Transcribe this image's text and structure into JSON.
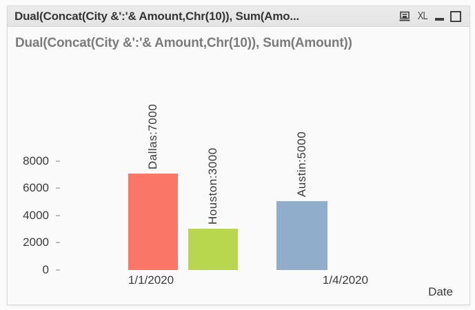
{
  "window": {
    "title": "Dual(Concat(City &':'& Amount,Chr(10)), Sum(Amo...",
    "toolbar": {
      "print_icon": "printer-icon",
      "excel_label": "XL",
      "minimize_icon": "minimize-icon",
      "maximize_icon": "maximize-icon"
    }
  },
  "chart_data": {
    "type": "bar",
    "title": "Dual(Concat(City &':'& Amount,Chr(10)), Sum(Amount))",
    "xlabel": "Date",
    "ylabel": "",
    "ylim": [
      0,
      8000
    ],
    "y_ticks": [
      0,
      2000,
      4000,
      6000,
      8000
    ],
    "x_tick_labels": [
      "1/1/2020",
      "1/4/2020"
    ],
    "grid": false,
    "legend": false,
    "bars": [
      {
        "city": "Dallas",
        "amount": 7000,
        "date": "1/1/2020",
        "bar_label": "Dallas:7000",
        "color": "#FA7767"
      },
      {
        "city": "Houston",
        "amount": 3000,
        "date": "1/1/2020",
        "bar_label": "Houston:3000",
        "color": "#B8D74E"
      },
      {
        "city": "Austin",
        "amount": 5000,
        "date": "1/4/2020",
        "bar_label": "Austin:5000",
        "color": "#90ADCB"
      }
    ]
  }
}
